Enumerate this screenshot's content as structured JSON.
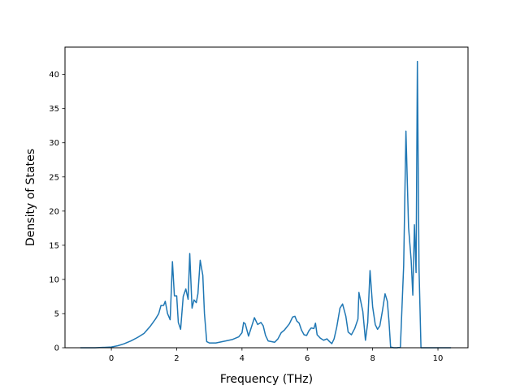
{
  "chart_data": {
    "type": "line",
    "title": "",
    "xlabel": "Frequency (THz)",
    "ylabel": "Density of States",
    "xlim": [
      -1.42,
      10.92
    ],
    "ylim": [
      0,
      44
    ],
    "xticks": [
      0,
      2,
      4,
      6,
      8,
      10
    ],
    "yticks": [
      0,
      5,
      10,
      15,
      20,
      25,
      30,
      35,
      40
    ],
    "grid": false,
    "legend": "none",
    "series": [
      {
        "color": "#1f77b4",
        "x": [
          -0.95,
          -0.5,
          0.0,
          0.2,
          0.4,
          0.6,
          0.8,
          1.0,
          1.2,
          1.35,
          1.45,
          1.52,
          1.6,
          1.65,
          1.72,
          1.8,
          1.87,
          1.93,
          2.0,
          2.05,
          2.12,
          2.2,
          2.28,
          2.35,
          2.4,
          2.47,
          2.53,
          2.6,
          2.65,
          2.72,
          2.8,
          2.85,
          2.92,
          3.0,
          3.2,
          3.5,
          3.7,
          3.9,
          4.0,
          4.05,
          4.1,
          4.2,
          4.3,
          4.38,
          4.48,
          4.58,
          4.65,
          4.72,
          4.8,
          5.0,
          5.1,
          5.2,
          5.3,
          5.45,
          5.55,
          5.62,
          5.68,
          5.75,
          5.82,
          5.9,
          5.98,
          6.05,
          6.12,
          6.2,
          6.25,
          6.3,
          6.4,
          6.5,
          6.6,
          6.68,
          6.75,
          6.82,
          6.9,
          7.0,
          7.08,
          7.18,
          7.25,
          7.35,
          7.45,
          7.55,
          7.58,
          7.7,
          7.78,
          7.85,
          7.92,
          8.0,
          8.08,
          8.15,
          8.22,
          8.3,
          8.38,
          8.45,
          8.5,
          8.55,
          8.65,
          8.75,
          8.85,
          8.95,
          9.02,
          9.1,
          9.18,
          9.23,
          9.28,
          9.33,
          9.37,
          9.42,
          9.48,
          9.6,
          10.4
        ],
        "y": [
          0,
          0,
          0.1,
          0.3,
          0.6,
          1.0,
          1.5,
          2.1,
          3.2,
          4.2,
          5.0,
          6.2,
          6.2,
          6.8,
          5.0,
          4.1,
          12.6,
          7.6,
          7.6,
          3.7,
          2.7,
          7.5,
          8.6,
          7.1,
          13.8,
          5.8,
          7.0,
          6.6,
          7.9,
          12.8,
          10.6,
          5.0,
          0.9,
          0.7,
          0.7,
          1.0,
          1.2,
          1.6,
          2.2,
          3.7,
          3.5,
          1.7,
          3.2,
          4.4,
          3.4,
          3.7,
          3.2,
          1.8,
          1.0,
          0.8,
          1.3,
          2.2,
          2.6,
          3.5,
          4.5,
          4.6,
          3.9,
          3.6,
          2.6,
          1.9,
          1.8,
          2.5,
          2.9,
          2.8,
          3.6,
          1.9,
          1.4,
          1.1,
          1.3,
          0.9,
          0.6,
          1.3,
          3.0,
          5.8,
          6.4,
          4.6,
          2.3,
          1.9,
          2.8,
          4.2,
          8.1,
          5.3,
          1.1,
          3.7,
          11.3,
          6.0,
          3.4,
          2.7,
          3.2,
          5.4,
          7.9,
          6.8,
          3.9,
          0.1,
          0.0,
          0.0,
          0.1,
          12.0,
          31.7,
          17.6,
          12.8,
          7.7,
          18.0,
          11.0,
          41.9,
          11.7,
          0.0,
          0.0,
          0.0
        ]
      }
    ]
  }
}
